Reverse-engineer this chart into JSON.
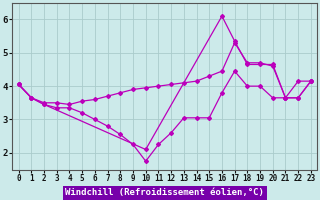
{
  "background_color": "#cceaea",
  "plot_bg_color": "#cceaea",
  "grid_color": "#aacccc",
  "line_color": "#bb00bb",
  "xlabel": "Windchill (Refroidissement éolien,°C)",
  "xlim": [
    -0.5,
    23.5
  ],
  "ylim": [
    1.5,
    6.5
  ],
  "yticks": [
    2,
    3,
    4,
    5,
    6
  ],
  "xticks": [
    0,
    1,
    2,
    3,
    4,
    5,
    6,
    7,
    8,
    9,
    10,
    11,
    12,
    13,
    14,
    15,
    16,
    17,
    18,
    19,
    20,
    21,
    22,
    23
  ],
  "lines": [
    {
      "x": [
        0,
        1,
        2,
        3,
        4,
        5,
        6,
        7,
        8,
        9,
        10,
        11,
        12,
        13,
        14,
        15,
        16,
        17,
        18,
        19,
        20,
        21,
        22,
        23
      ],
      "y": [
        4.05,
        3.65,
        3.45,
        3.35,
        3.35,
        3.2,
        3.0,
        2.8,
        2.55,
        2.25,
        1.75,
        2.25,
        2.6,
        3.05,
        3.05,
        3.05,
        3.8,
        4.45,
        4.0,
        4.0,
        3.65,
        3.65,
        4.15,
        4.15
      ]
    },
    {
      "x": [
        0,
        1,
        2,
        3,
        4,
        5,
        6,
        7,
        8,
        9,
        10,
        11,
        12,
        13,
        14,
        15,
        16,
        17,
        18,
        19,
        20,
        21,
        22,
        23
      ],
      "y": [
        4.05,
        3.65,
        3.5,
        3.5,
        3.45,
        3.55,
        3.6,
        3.7,
        3.8,
        3.9,
        3.95,
        4.0,
        4.05,
        4.1,
        4.15,
        4.3,
        4.45,
        5.3,
        4.7,
        4.7,
        4.6,
        3.65,
        3.65,
        4.15
      ]
    },
    {
      "x": [
        0,
        1,
        2,
        10,
        16,
        17,
        18,
        19,
        20,
        21,
        22,
        23
      ],
      "y": [
        4.05,
        3.65,
        3.45,
        2.1,
        6.1,
        5.35,
        4.65,
        4.65,
        4.65,
        3.65,
        3.65,
        4.15
      ]
    }
  ],
  "xlabel_bg": "#7700aa",
  "xlabel_color": "#ffffff",
  "xlabel_fontsize": 6.5,
  "tick_fontsize": 5.5,
  "ytick_fontsize": 6.5
}
